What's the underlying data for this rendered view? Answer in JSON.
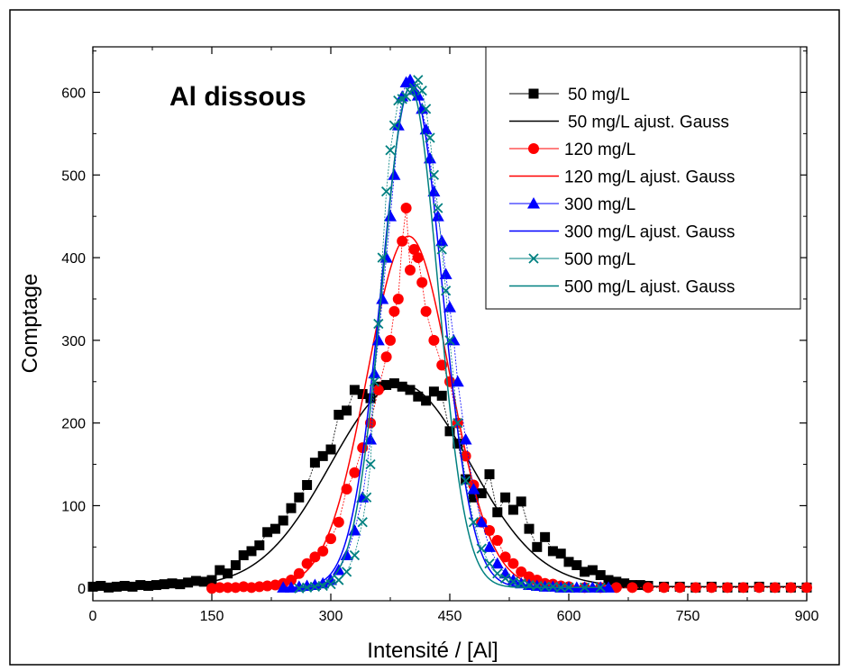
{
  "chart_data": {
    "type": "scatter",
    "title": "Al dissous",
    "xlabel": "Intensité / [Al]",
    "ylabel": "Comptage",
    "xlim": [
      0,
      900
    ],
    "ylim": [
      -15,
      655
    ],
    "xticks": [
      0,
      150,
      300,
      450,
      600,
      750,
      900
    ],
    "yticks": [
      0,
      100,
      200,
      300,
      400,
      500,
      600
    ],
    "legend_position": "top-right",
    "series": [
      {
        "name": "50 mg/L",
        "kind": "markers",
        "marker": "square",
        "color": "#000000",
        "x": [
          0,
          10,
          20,
          30,
          40,
          50,
          60,
          70,
          80,
          90,
          100,
          110,
          120,
          130,
          140,
          150,
          160,
          170,
          180,
          190,
          200,
          210,
          220,
          230,
          240,
          250,
          260,
          270,
          280,
          290,
          300,
          310,
          320,
          330,
          340,
          350,
          360,
          370,
          380,
          390,
          400,
          410,
          420,
          430,
          440,
          450,
          460,
          470,
          480,
          490,
          500,
          510,
          520,
          530,
          540,
          550,
          560,
          570,
          580,
          590,
          600,
          610,
          620,
          630,
          640,
          650,
          660,
          670,
          680,
          690,
          700,
          720,
          740,
          760,
          780,
          800,
          820,
          840,
          860,
          880,
          900
        ],
        "y": [
          2,
          3,
          1,
          2,
          3,
          2,
          4,
          3,
          4,
          5,
          6,
          5,
          7,
          9,
          8,
          10,
          22,
          18,
          28,
          40,
          45,
          52,
          68,
          72,
          82,
          97,
          110,
          125,
          152,
          160,
          168,
          210,
          215,
          240,
          235,
          230,
          244,
          246,
          248,
          244,
          240,
          232,
          227,
          238,
          233,
          190,
          175,
          132,
          110,
          115,
          138,
          92,
          110,
          95,
          105,
          72,
          50,
          62,
          45,
          42,
          32,
          28,
          20,
          22,
          16,
          10,
          8,
          6,
          4,
          4,
          3,
          2,
          2,
          1,
          2,
          1,
          1,
          2,
          1,
          1,
          1
        ]
      },
      {
        "name": "50 mg/L ajust. Gauss",
        "kind": "fit",
        "color": "#000000",
        "center": 388,
        "sigma": 88,
        "amp": 245,
        "base": 2,
        "range": [
          0,
          900
        ]
      },
      {
        "name": "120 mg/L",
        "kind": "markers",
        "marker": "circle",
        "color": "#ff0000",
        "x": [
          150,
          160,
          170,
          180,
          190,
          200,
          210,
          220,
          230,
          240,
          250,
          260,
          270,
          280,
          290,
          300,
          310,
          320,
          330,
          340,
          350,
          360,
          370,
          375,
          380,
          385,
          390,
          395,
          400,
          405,
          410,
          415,
          420,
          430,
          440,
          450,
          460,
          470,
          480,
          490,
          500,
          510,
          520,
          530,
          540,
          550,
          560,
          570,
          580,
          590,
          600,
          620,
          640,
          660,
          680,
          700,
          720,
          740,
          760,
          780,
          800,
          820,
          840,
          860,
          880,
          900
        ],
        "y": [
          0,
          1,
          1,
          1,
          2,
          1,
          2,
          3,
          4,
          6,
          10,
          18,
          30,
          38,
          45,
          60,
          80,
          120,
          140,
          170,
          200,
          240,
          280,
          300,
          335,
          350,
          420,
          460,
          385,
          410,
          400,
          370,
          335,
          300,
          270,
          250,
          200,
          160,
          125,
          80,
          70,
          58,
          38,
          30,
          20,
          14,
          10,
          6,
          5,
          3,
          2,
          1,
          1,
          1,
          1,
          1,
          1,
          1,
          1,
          1,
          1,
          1,
          1,
          1,
          1,
          1
        ]
      },
      {
        "name": "120 mg/L ajust. Gauss",
        "kind": "fit",
        "color": "#ff0000",
        "center": 398,
        "sigma": 52,
        "amp": 425,
        "base": 1,
        "range": [
          150,
          640
        ]
      },
      {
        "name": "300 mg/L",
        "kind": "markers",
        "marker": "triangle",
        "color": "#0000ff",
        "x": [
          240,
          250,
          260,
          270,
          280,
          290,
          300,
          310,
          320,
          330,
          340,
          350,
          355,
          360,
          365,
          370,
          375,
          380,
          385,
          390,
          395,
          400,
          405,
          410,
          415,
          420,
          425,
          430,
          435,
          440,
          445,
          450,
          455,
          460,
          470,
          480,
          490,
          500,
          510,
          520,
          530,
          540,
          550,
          560,
          570,
          580,
          590,
          600,
          610,
          620,
          630,
          640,
          650
        ],
        "y": [
          1,
          1,
          2,
          3,
          4,
          6,
          10,
          22,
          40,
          70,
          110,
          180,
          260,
          300,
          350,
          400,
          450,
          500,
          560,
          595,
          612,
          615,
          603,
          596,
          580,
          555,
          520,
          480,
          450,
          420,
          380,
          340,
          300,
          250,
          180,
          120,
          80,
          50,
          30,
          18,
          10,
          6,
          4,
          3,
          2,
          2,
          1,
          1,
          1,
          1,
          1,
          1,
          1
        ]
      },
      {
        "name": "300 mg/L ajust. Gauss",
        "kind": "fit",
        "color": "#0000ff",
        "center": 402,
        "sigma": 38,
        "amp": 608,
        "base": 1,
        "range": [
          240,
          650
        ]
      },
      {
        "name": "500 mg/L",
        "kind": "markers",
        "marker": "cross",
        "color": "#008080",
        "x": [
          260,
          270,
          280,
          290,
          300,
          310,
          320,
          330,
          340,
          345,
          350,
          355,
          360,
          365,
          370,
          375,
          380,
          385,
          390,
          395,
          400,
          405,
          410,
          415,
          420,
          425,
          430,
          435,
          440,
          445,
          450,
          460,
          470,
          480,
          490,
          500,
          510,
          520,
          530,
          540,
          550,
          560,
          570,
          580,
          590,
          600,
          620,
          640
        ],
        "y": [
          0,
          1,
          2,
          3,
          5,
          10,
          20,
          40,
          80,
          110,
          150,
          250,
          320,
          400,
          480,
          530,
          560,
          590,
          592,
          595,
          600,
          605,
          615,
          602,
          580,
          545,
          500,
          460,
          410,
          360,
          300,
          200,
          130,
          80,
          48,
          30,
          18,
          12,
          8,
          6,
          4,
          3,
          2,
          2,
          1,
          1,
          1,
          1
        ]
      },
      {
        "name": "500 mg/L ajust. Gauss",
        "kind": "fit",
        "color": "#008080",
        "center": 400,
        "sigma": 35,
        "amp": 605,
        "base": 1,
        "range": [
          260,
          640
        ]
      }
    ]
  }
}
